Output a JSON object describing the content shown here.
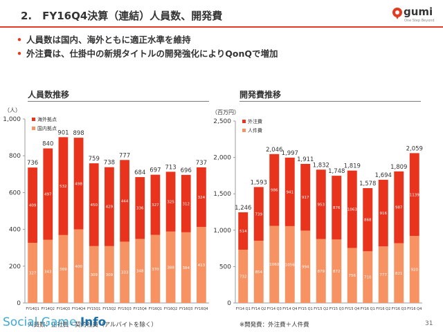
{
  "header": {
    "title": "2.　FY16Q4決算（連結）人員数、開発費",
    "logo_text": "gumi",
    "logo_sub": "One Step Beyond"
  },
  "bullets": [
    "人員数は国内、海外ともに適正水準を維持",
    "外注費は、仕掛中の新規タイトルの開発強化によりQonQで増加"
  ],
  "colors": {
    "accent": "#e33b1f",
    "series_top": "#e8341c",
    "series_bottom": "#f79262"
  },
  "chart_data": [
    {
      "type": "bar",
      "stacked": true,
      "title": "人員数推移",
      "unit_label": "（人）",
      "ylim": [
        0,
        1000
      ],
      "yticks": [
        "0",
        "200",
        "400",
        "600",
        "800",
        "1,000"
      ],
      "categories": [
        "FY14Q1",
        "FY14Q2",
        "FY14Q3",
        "FY14Q4",
        "FY15Q1",
        "FY15Q2",
        "FY15Q3",
        "FY15Q4",
        "FY16Q1",
        "FY16Q2",
        "FY16Q3",
        "FY16Q4"
      ],
      "series": [
        {
          "name": "国内拠点",
          "values": [
            327,
            343,
            369,
            400,
            309,
            309,
            333,
            348,
            370,
            388,
            384,
            413
          ]
        },
        {
          "name": "海外拠点",
          "values": [
            409,
            497,
            532,
            498,
            450,
            429,
            444,
            336,
            327,
            325,
            312,
            324
          ]
        }
      ],
      "totals": [
        736,
        840,
        901,
        898,
        759,
        738,
        777,
        684,
        697,
        713,
        696,
        737
      ],
      "grid": false,
      "legend": "top-left"
    },
    {
      "type": "bar",
      "stacked": true,
      "title": "開発費推移",
      "unit_label": "（百万円）",
      "ylim": [
        0,
        2500
      ],
      "yticks": [
        "0",
        "500",
        "1,000",
        "1,500",
        "2,000",
        "2,500"
      ],
      "categories": [
        "FY14 Q1",
        "FY14 Q2",
        "FY14 Q3",
        "FY14 Q4",
        "FY15 Q1",
        "FY15 Q2",
        "FY15 Q3",
        "FY15 Q4",
        "FY16 Q1",
        "FY16 Q2",
        "FY16 Q3",
        "FY16 Q4"
      ],
      "series": [
        {
          "name": "人件費",
          "values": [
            732,
            854,
            1060,
            1056,
            994,
            879,
            872,
            756,
            710,
            777,
            821,
            920
          ]
        },
        {
          "name": "外注費",
          "values": [
            514,
            739,
            986,
            941,
            917,
            953,
            876,
            1063,
            868,
            916,
            987,
            1139
          ]
        }
      ],
      "totals": [
        "1,246",
        "1,593",
        "2,046",
        "1,997",
        "1,911",
        "1,832",
        "1,748",
        "1,819",
        "1,578",
        "1,694",
        "1,809",
        "2,059"
      ],
      "grid": false,
      "legend": "top-left"
    }
  ],
  "footer": {
    "left_note": "人員数：正社員・契約社員（アルバイトを除く）",
    "right_note": "※開発費：外注費＋人件費",
    "page": "31",
    "watermark_a": "Social Game ",
    "watermark_b": "Info"
  }
}
